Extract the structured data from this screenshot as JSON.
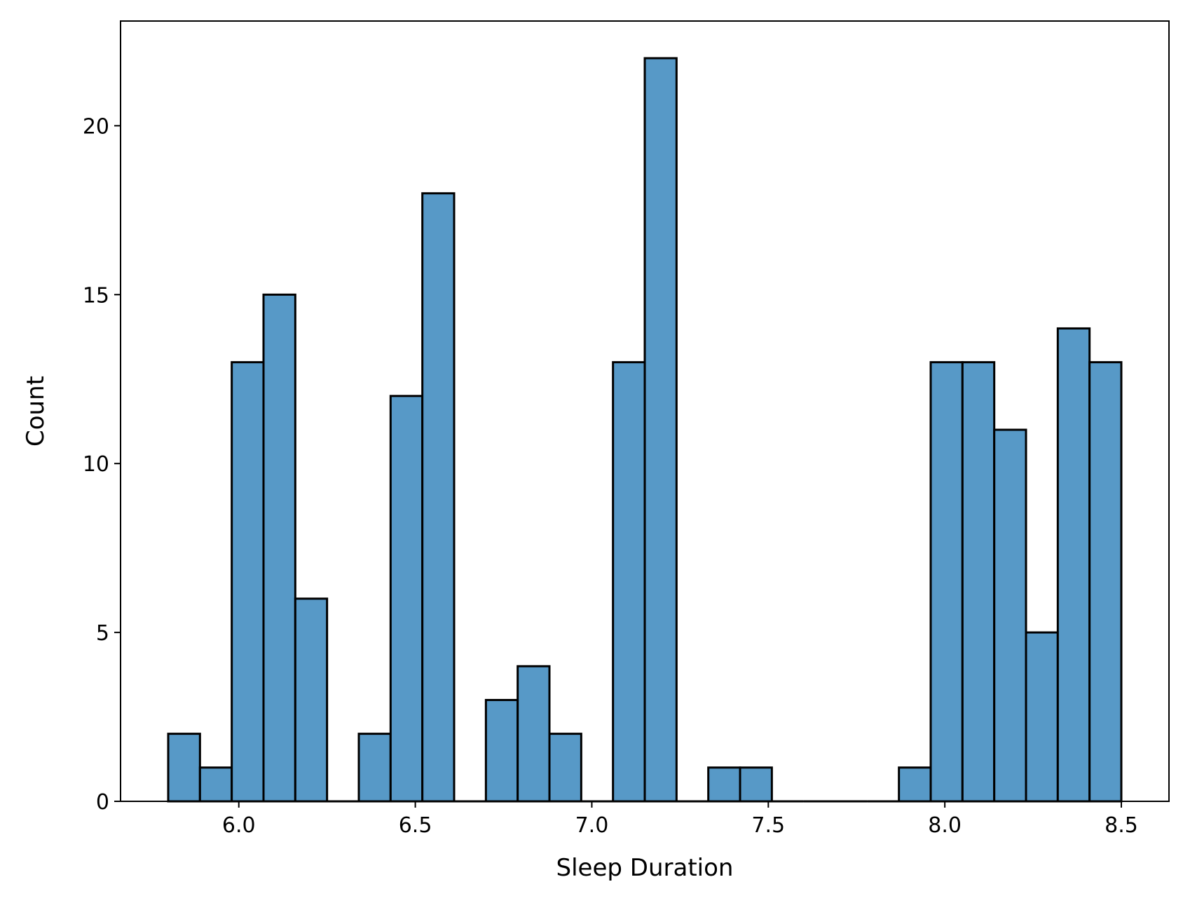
{
  "chart_data": {
    "type": "bar",
    "subtype": "histogram",
    "title": "",
    "xlabel": "Sleep Duration",
    "ylabel": "Count",
    "xlim": [
      5.665,
      8.635
    ],
    "ylim": [
      0,
      23.1
    ],
    "x_ticks": [
      6.0,
      6.5,
      7.0,
      7.5,
      8.0,
      8.5
    ],
    "x_tick_labels": [
      "6.0",
      "6.5",
      "7.0",
      "7.5",
      "8.0",
      "8.5"
    ],
    "y_ticks": [
      0,
      5,
      10,
      15,
      20
    ],
    "y_tick_labels": [
      "0",
      "5",
      "10",
      "15",
      "20"
    ],
    "bin_start": 5.8,
    "bin_width": 0.09,
    "values": [
      2,
      1,
      13,
      15,
      6,
      0,
      2,
      12,
      18,
      0,
      3,
      4,
      2,
      0,
      13,
      22,
      0,
      1,
      1,
      0,
      0,
      0,
      0,
      1,
      13,
      13,
      11,
      5,
      14,
      13
    ],
    "grid": false,
    "legend": "none",
    "colors": {
      "bar_fill": "#5799c7",
      "bar_edge": "#000000",
      "axis": "#000000"
    }
  }
}
